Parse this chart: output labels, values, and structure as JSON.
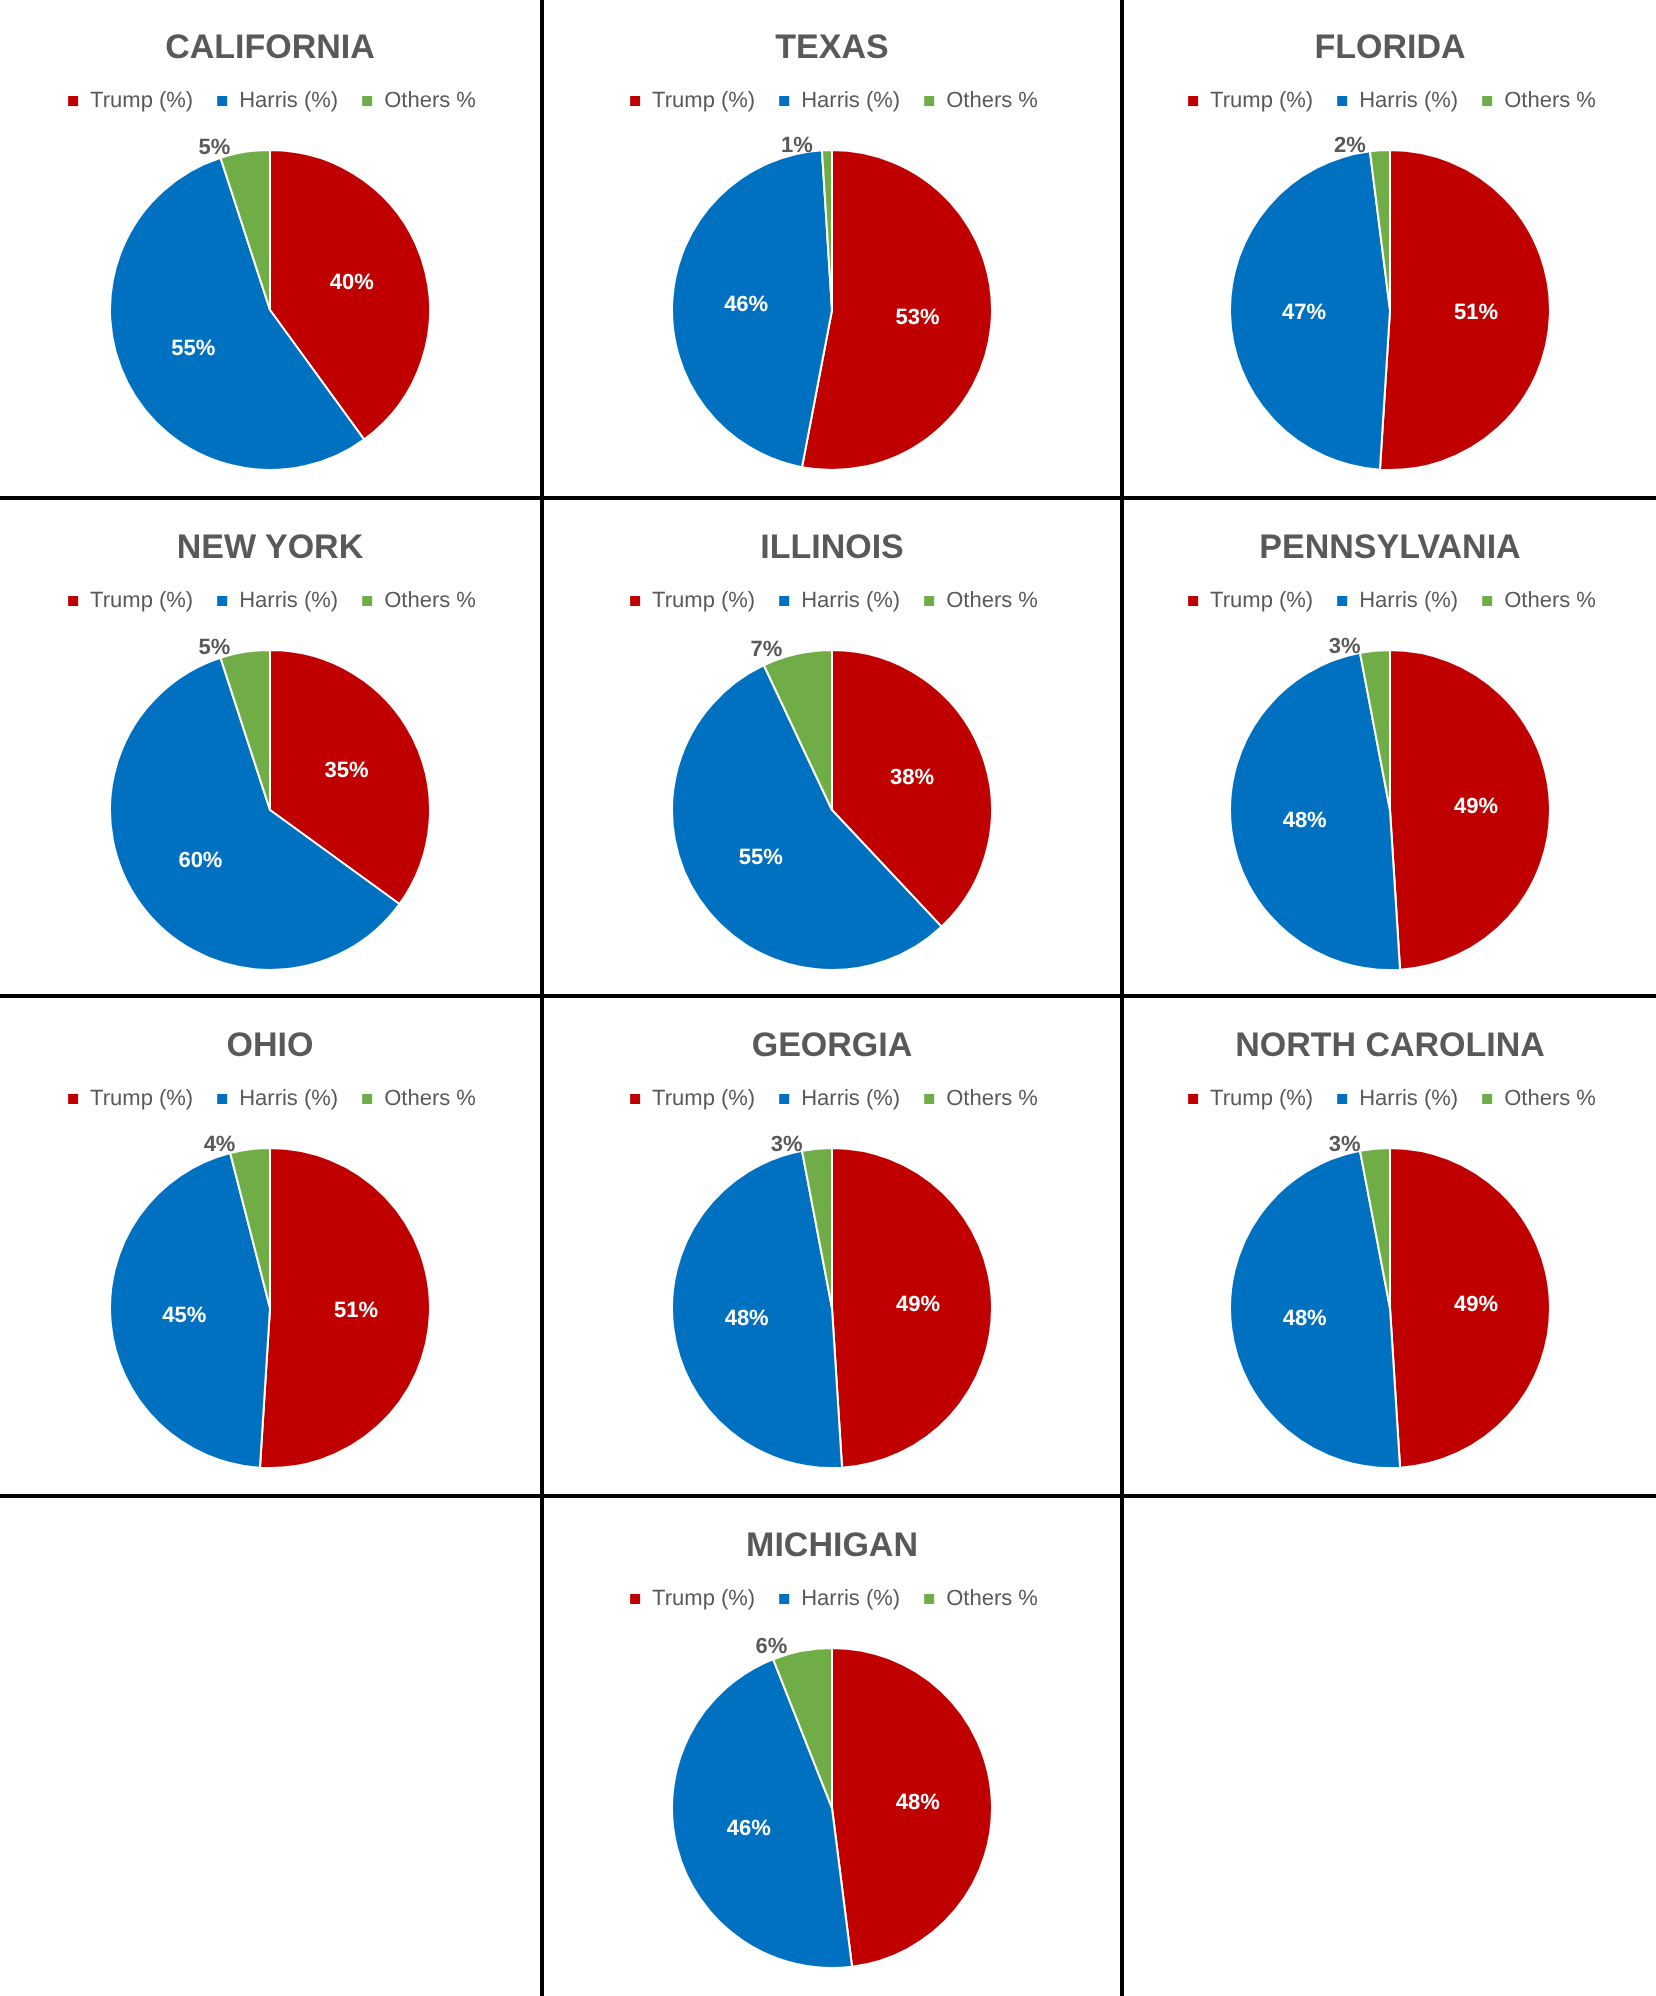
{
  "chart_data": [
    {
      "type": "pie",
      "title": "CALIFORNIA",
      "categories": [
        "Trump (%)",
        "Harris (%)",
        "Others %"
      ],
      "values": [
        40,
        55,
        5
      ],
      "value_labels": [
        "40%",
        "55%",
        "5%"
      ],
      "colors": [
        "#c00000",
        "#0070c0",
        "#70ad47"
      ],
      "legend": "top"
    },
    {
      "type": "pie",
      "title": "TEXAS",
      "categories": [
        "Trump (%)",
        "Harris (%)",
        "Others %"
      ],
      "values": [
        53,
        46,
        1
      ],
      "value_labels": [
        "53%",
        "46%",
        "1%"
      ],
      "colors": [
        "#c00000",
        "#0070c0",
        "#70ad47"
      ],
      "legend": "top"
    },
    {
      "type": "pie",
      "title": "FLORIDA",
      "categories": [
        "Trump (%)",
        "Harris (%)",
        "Others %"
      ],
      "values": [
        51,
        47,
        2
      ],
      "value_labels": [
        "51%",
        "47%",
        "2%"
      ],
      "colors": [
        "#c00000",
        "#0070c0",
        "#70ad47"
      ],
      "legend": "top"
    },
    {
      "type": "pie",
      "title": "NEW YORK",
      "categories": [
        "Trump (%)",
        "Harris (%)",
        "Others %"
      ],
      "values": [
        35,
        60,
        5
      ],
      "value_labels": [
        "35%",
        "60%",
        "5%"
      ],
      "colors": [
        "#c00000",
        "#0070c0",
        "#70ad47"
      ],
      "legend": "top"
    },
    {
      "type": "pie",
      "title": "ILLINOIS",
      "categories": [
        "Trump (%)",
        "Harris (%)",
        "Others %"
      ],
      "values": [
        38,
        55,
        7
      ],
      "value_labels": [
        "38%",
        "55%",
        "7%"
      ],
      "colors": [
        "#c00000",
        "#0070c0",
        "#70ad47"
      ],
      "legend": "top"
    },
    {
      "type": "pie",
      "title": "PENNSYLVANIA",
      "categories": [
        "Trump (%)",
        "Harris (%)",
        "Others %"
      ],
      "values": [
        49,
        48,
        3
      ],
      "value_labels": [
        "49%",
        "48%",
        "3%"
      ],
      "colors": [
        "#c00000",
        "#0070c0",
        "#70ad47"
      ],
      "legend": "top"
    },
    {
      "type": "pie",
      "title": "OHIO",
      "categories": [
        "Trump (%)",
        "Harris (%)",
        "Others %"
      ],
      "values": [
        51,
        45,
        4
      ],
      "value_labels": [
        "51%",
        "45%",
        "4%"
      ],
      "colors": [
        "#c00000",
        "#0070c0",
        "#70ad47"
      ],
      "legend": "top"
    },
    {
      "type": "pie",
      "title": "GEORGIA",
      "categories": [
        "Trump (%)",
        "Harris (%)",
        "Others %"
      ],
      "values": [
        49,
        48,
        3
      ],
      "value_labels": [
        "49%",
        "48%",
        "3%"
      ],
      "colors": [
        "#c00000",
        "#0070c0",
        "#70ad47"
      ],
      "legend": "top"
    },
    {
      "type": "pie",
      "title": "NORTH CAROLINA",
      "categories": [
        "Trump (%)",
        "Harris (%)",
        "Others %"
      ],
      "values": [
        49,
        48,
        3
      ],
      "value_labels": [
        "49%",
        "48%",
        "3%"
      ],
      "colors": [
        "#c00000",
        "#0070c0",
        "#70ad47"
      ],
      "legend": "top"
    },
    {
      "type": "pie",
      "title": "MICHIGAN",
      "categories": [
        "Trump (%)",
        "Harris (%)",
        "Others %"
      ],
      "values": [
        48,
        46,
        6
      ],
      "value_labels": [
        "48%",
        "46%",
        "6%"
      ],
      "colors": [
        "#c00000",
        "#0070c0",
        "#70ad47"
      ],
      "legend": "top"
    }
  ]
}
